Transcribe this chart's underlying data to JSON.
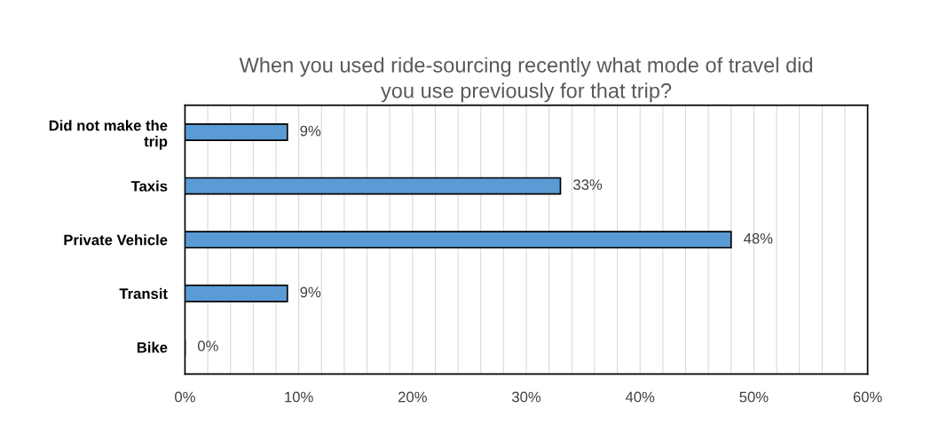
{
  "chart_data": {
    "type": "bar",
    "orientation": "horizontal",
    "title": "When you used ride-sourcing recently what mode of travel did\nyou use previously for that trip?",
    "categories": [
      "Did not make the\ntrip",
      "Taxis",
      "Private Vehicle",
      "Transit",
      "Bike"
    ],
    "values": [
      9,
      33,
      48,
      9,
      0
    ],
    "value_labels": [
      "9%",
      "33%",
      "48%",
      "9%",
      "0%"
    ],
    "color": "#5b9bd5",
    "xlim": [
      0,
      60
    ],
    "xticks": [
      {
        "value": 0,
        "label": "0%"
      },
      {
        "value": 2,
        "label": null
      },
      {
        "value": 4,
        "label": null
      },
      {
        "value": 6,
        "label": null
      },
      {
        "value": 8,
        "label": null
      },
      {
        "value": 10,
        "label": "10%"
      },
      {
        "value": 12,
        "label": null
      },
      {
        "value": 14,
        "label": null
      },
      {
        "value": 16,
        "label": null
      },
      {
        "value": 18,
        "label": null
      },
      {
        "value": 20,
        "label": "20%"
      },
      {
        "value": 22,
        "label": null
      },
      {
        "value": 24,
        "label": null
      },
      {
        "value": 26,
        "label": null
      },
      {
        "value": 28,
        "label": null
      },
      {
        "value": 30,
        "label": "30%"
      },
      {
        "value": 32,
        "label": null
      },
      {
        "value": 34,
        "label": null
      },
      {
        "value": 36,
        "label": null
      },
      {
        "value": 38,
        "label": null
      },
      {
        "value": 40,
        "label": "40%"
      },
      {
        "value": 42,
        "label": null
      },
      {
        "value": 44,
        "label": null
      },
      {
        "value": 46,
        "label": null
      },
      {
        "value": 48,
        "label": null
      },
      {
        "value": 50,
        "label": "50%"
      },
      {
        "value": 52,
        "label": null
      },
      {
        "value": 54,
        "label": null
      },
      {
        "value": 56,
        "label": null
      },
      {
        "value": 58,
        "label": null
      },
      {
        "value": 60,
        "label": "60%"
      }
    ],
    "grid": "x",
    "legend": false
  }
}
